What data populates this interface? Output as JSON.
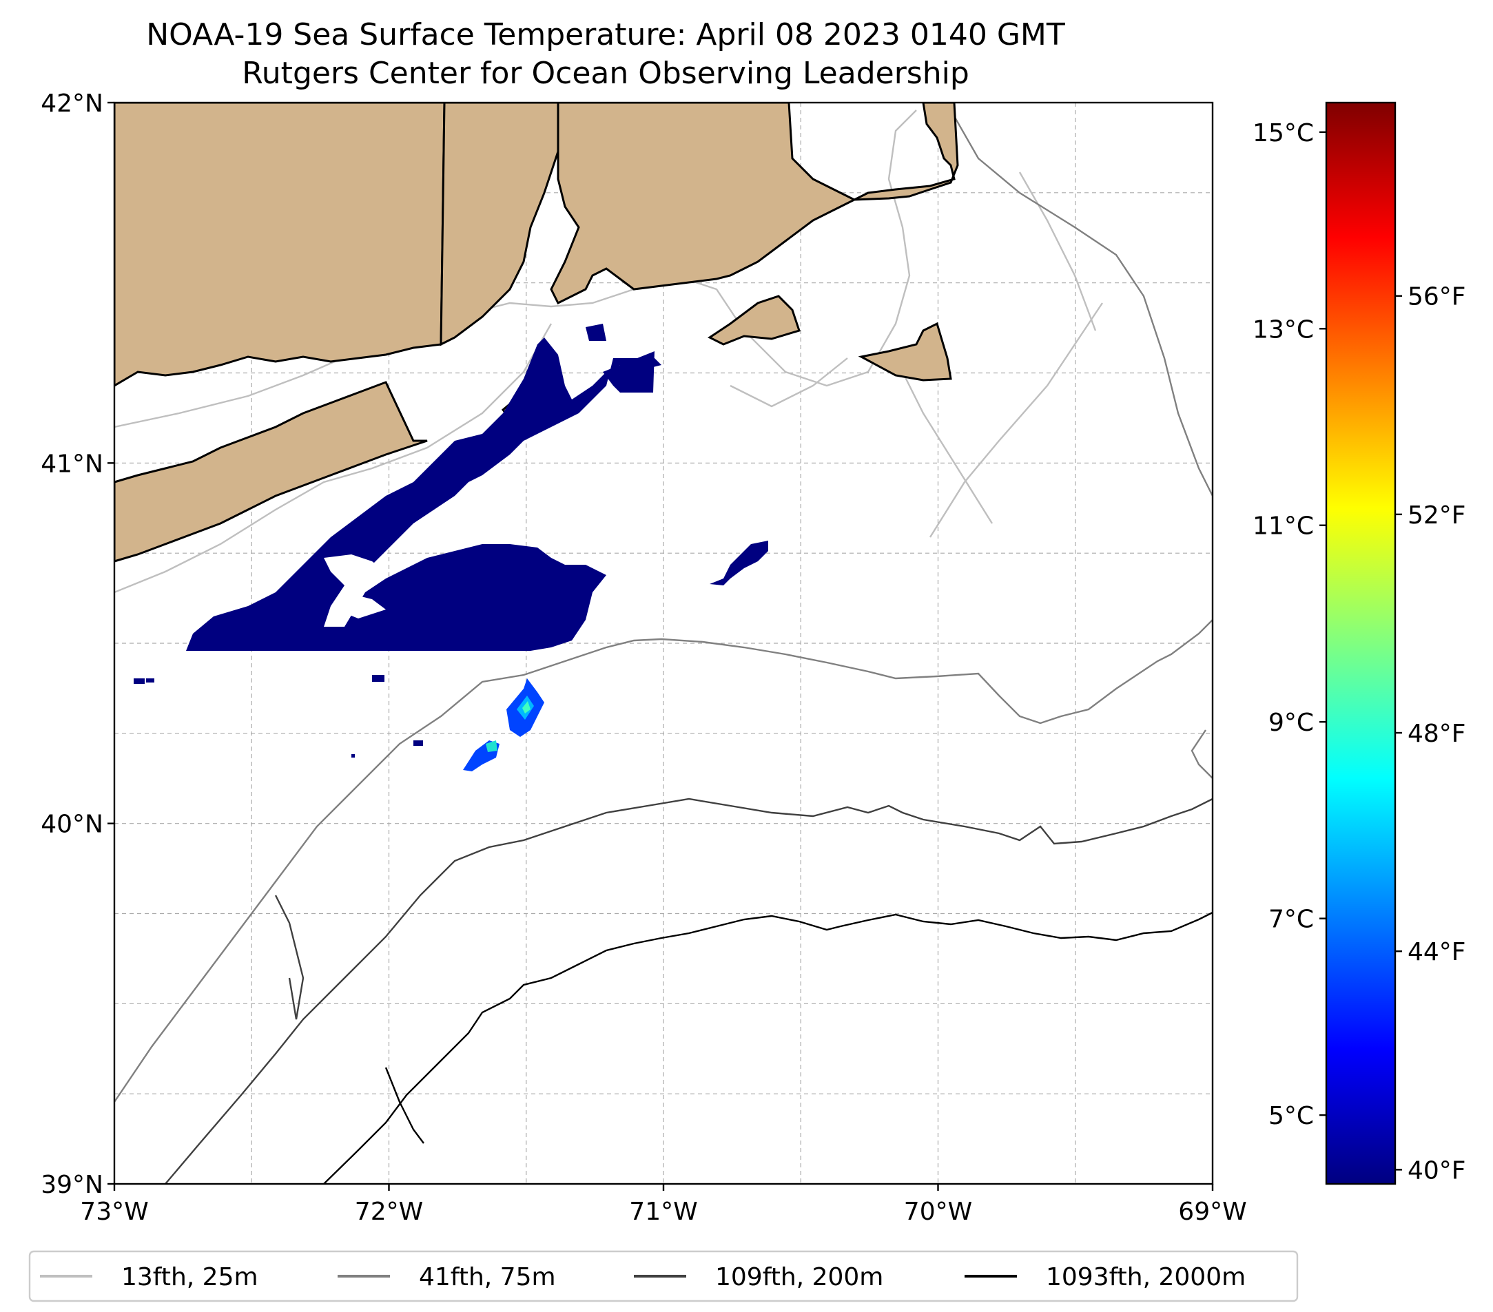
{
  "title": {
    "line1": "NOAA-19 Sea Surface Temperature: April 08 2023 0140 GMT",
    "line2": "Rutgers Center for Ocean Observing Leadership"
  },
  "map": {
    "lat_range": [
      39,
      42
    ],
    "lon_range": [
      -73,
      -69
    ],
    "lat_ticks": [
      {
        "value": 42,
        "label": "42°N"
      },
      {
        "value": 41,
        "label": "41°N"
      },
      {
        "value": 40,
        "label": "40°N"
      },
      {
        "value": 39,
        "label": "39°N"
      }
    ],
    "lon_ticks": [
      {
        "value": -73,
        "label": "73°W"
      },
      {
        "value": -72,
        "label": "72°W"
      },
      {
        "value": -71,
        "label": "71°W"
      },
      {
        "value": -70,
        "label": "70°W"
      },
      {
        "value": -69,
        "label": "69°W"
      }
    ],
    "land_color": "#d2b48c",
    "sst_cold_color": "#000080"
  },
  "colorbar": {
    "celsius_range": [
      4.3,
      15.3
    ],
    "celsius_ticks": [
      {
        "value": 15,
        "label": "15°C"
      },
      {
        "value": 13,
        "label": "13°C"
      },
      {
        "value": 11,
        "label": "11°C"
      },
      {
        "value": 9,
        "label": "9°C"
      },
      {
        "value": 7,
        "label": "7°C"
      },
      {
        "value": 5,
        "label": "5°C"
      }
    ],
    "fahrenheit_ticks": [
      {
        "value": 56,
        "label": "56°F"
      },
      {
        "value": 52,
        "label": "52°F"
      },
      {
        "value": 48,
        "label": "48°F"
      },
      {
        "value": 44,
        "label": "44°F"
      },
      {
        "value": 40,
        "label": "40°F"
      }
    ],
    "colormap": [
      "#000080",
      "#0000ff",
      "#0080ff",
      "#00ffff",
      "#80ff80",
      "#ffff00",
      "#ff8000",
      "#ff0000",
      "#800000"
    ]
  },
  "legend": {
    "items": [
      {
        "label": "13fth, 25m",
        "color": "#bfbfbf"
      },
      {
        "label": "41fth, 75m",
        "color": "#808080"
      },
      {
        "label": "109fth, 200m",
        "color": "#404040"
      },
      {
        "label": "1093fth, 2000m",
        "color": "#000000"
      }
    ]
  }
}
